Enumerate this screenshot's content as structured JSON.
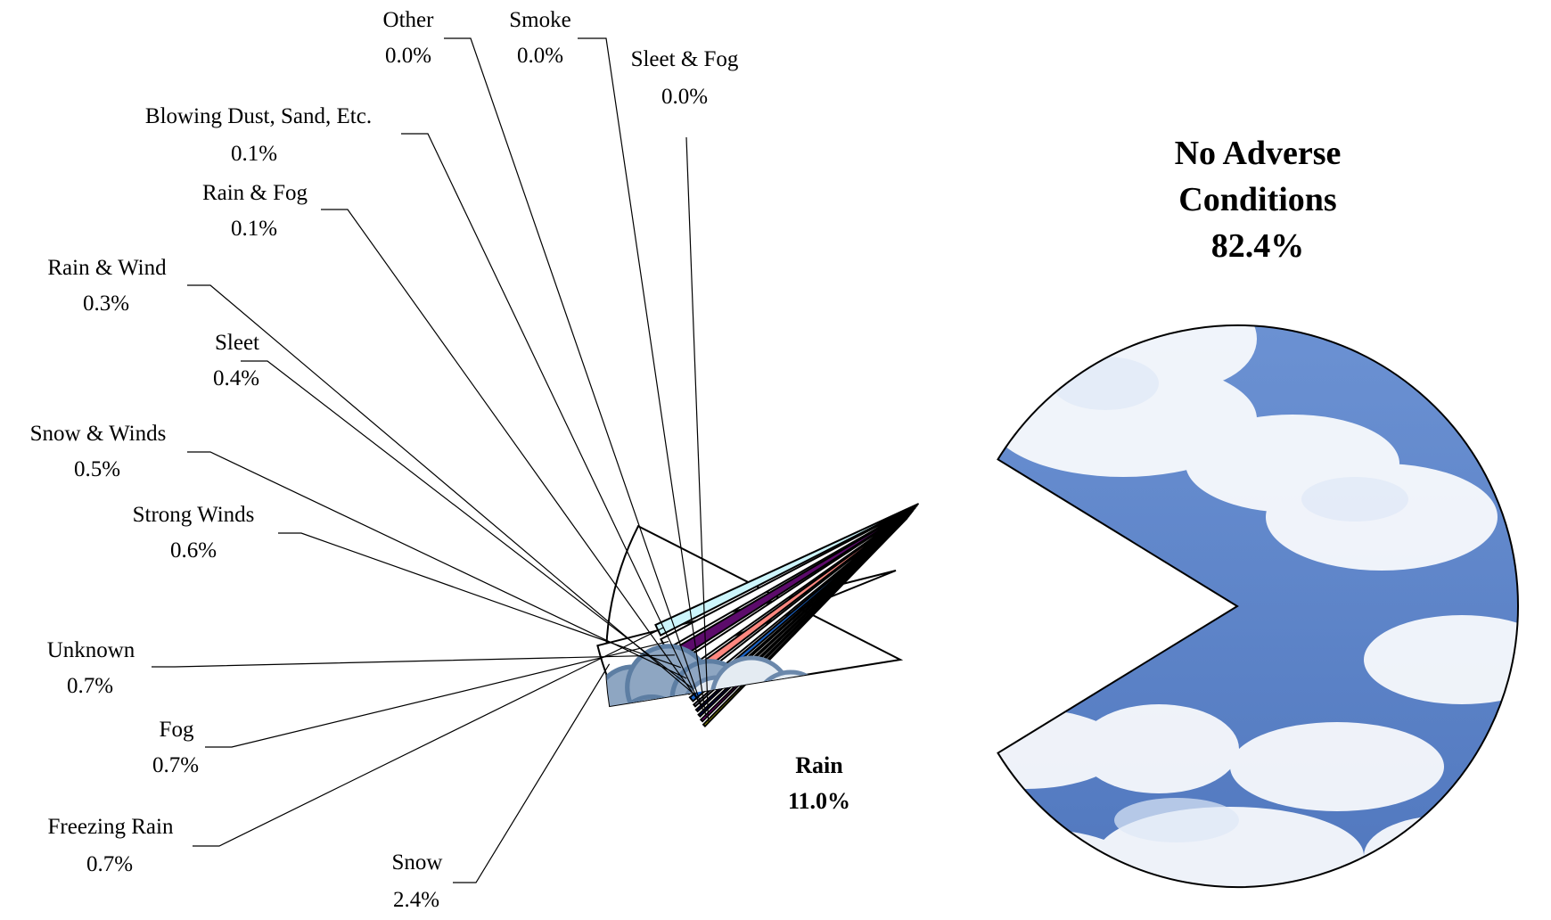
{
  "chart_data": {
    "type": "pie",
    "title": "",
    "slices": [
      {
        "label": "No Adverse Conditions",
        "value": 82.4,
        "value_label": "82.4%",
        "fill": "sky-clouds-image",
        "color": "#5b82c4"
      },
      {
        "label": "Rain",
        "value": 11.0,
        "value_label": "11.0%",
        "fill": "storm-cloud-lightning-image",
        "color": "#ffffff"
      },
      {
        "label": "Snow",
        "value": 2.4,
        "value_label": "2.4%",
        "fill": "snowflake-image",
        "color": "#ffffff"
      },
      {
        "label": "Freezing Rain",
        "value": 0.7,
        "value_label": "0.7%",
        "color": "#ccf5fb"
      },
      {
        "label": "Fog",
        "value": 0.7,
        "value_label": "0.7%",
        "color": "#ffffff"
      },
      {
        "label": "Unknown",
        "value": 0.7,
        "value_label": "0.7%",
        "color": "#5c0b6b"
      },
      {
        "label": "Strong Winds",
        "value": 0.6,
        "value_label": "0.6%",
        "color": "#ffffff"
      },
      {
        "label": "Snow & Winds",
        "value": 0.5,
        "value_label": "0.5%",
        "color": "#ff8880"
      },
      {
        "label": "Sleet",
        "value": 0.4,
        "value_label": "0.4%",
        "color": "#ffffff"
      },
      {
        "label": "Rain & Wind",
        "value": 0.3,
        "value_label": "0.3%",
        "color": "#1a63c7"
      },
      {
        "label": "Rain & Fog",
        "value": 0.1,
        "value_label": "0.1%",
        "color": "#a9a9c9"
      },
      {
        "label": "Blowing Dust, Sand, Etc.",
        "value": 0.1,
        "value_label": "0.1%",
        "color": "#000080"
      },
      {
        "label": "Other",
        "value": 0.0,
        "value_label": "0.0%",
        "color": "#000080"
      },
      {
        "label": "Smoke",
        "value": 0.0,
        "value_label": "0.0%",
        "color": "#ff00ff"
      },
      {
        "label": "Sleet & Fog",
        "value": 0.0,
        "value_label": "0.0%",
        "color": "#ffff00"
      }
    ],
    "legend": "none"
  }
}
